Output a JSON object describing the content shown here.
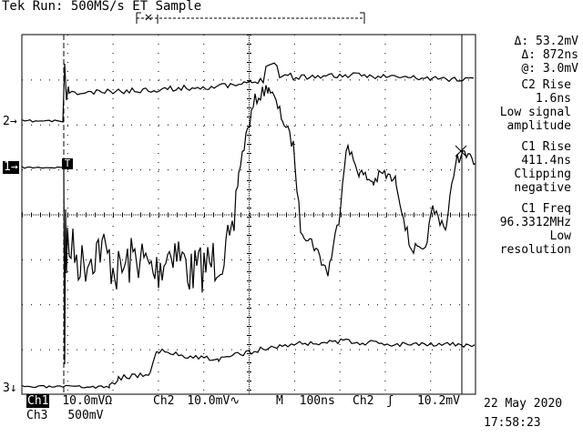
{
  "header": {
    "status": "Tek Run: 500MS/s ET Sample"
  },
  "markers": {
    "ch2": "2→",
    "ch1": "1→",
    "ch3": "3↓",
    "trigger": "T"
  },
  "readouts": {
    "delta_v": "Δ: 53.2mV",
    "delta_t": "Δ: 872ns",
    "at_v": "@: 3.0mV",
    "c2_rise_title": "C2 Rise",
    "c2_rise_value": "1.6ns",
    "c2_rise_note1": "Low signal",
    "c2_rise_note2": "amplitude",
    "c1_rise_title": "C1 Rise",
    "c1_rise_value": "411.4ns",
    "c1_rise_note1": "Clipping",
    "c1_rise_note2": "negative",
    "c1_freq_title": "C1 Freq",
    "c1_freq_value": "96.3312MHz",
    "c1_freq_note1": "Low",
    "c1_freq_note2": "resolution"
  },
  "bottom_bar": {
    "ch1_tag": "Ch1",
    "ch1_scale": "10.0mVΩ",
    "ch2_label": "Ch2",
    "ch2_scale": "10.0mV∿",
    "m_label": "M",
    "timebase": "100ns",
    "trig_label": "Ch2",
    "trig_slope": "ʃ",
    "trig_level": "10.2mV",
    "ch3_label": "Ch3",
    "ch3_scale": "500mV",
    "date": "22 May 2020",
    "time": "17:58:23"
  },
  "colors": {
    "background": "#ffffff",
    "trace": "#000000",
    "grid": "#000000"
  }
}
